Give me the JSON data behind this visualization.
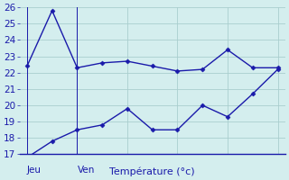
{
  "line1_x": [
    0,
    1,
    2,
    3,
    4,
    5,
    6,
    7,
    8,
    9,
    10
  ],
  "line1_y": [
    22.4,
    25.8,
    22.3,
    22.6,
    22.7,
    22.4,
    22.1,
    22.2,
    23.4,
    22.3,
    22.3
  ],
  "line2_x": [
    0,
    1,
    2,
    3,
    4,
    5,
    6,
    7,
    8,
    9,
    10
  ],
  "line2_y": [
    16.8,
    17.8,
    18.5,
    18.8,
    19.8,
    18.5,
    18.5,
    20.0,
    19.3,
    20.7,
    22.2
  ],
  "line_color": "#1a1aaa",
  "bg_color": "#d4eeee",
  "grid_color": "#aacece",
  "ylim": [
    17,
    26
  ],
  "yticks": [
    17,
    18,
    19,
    20,
    21,
    22,
    23,
    24,
    25,
    26
  ],
  "xlabel": "Température (°c)",
  "xlabel_fontsize": 8,
  "tick_label_fontsize": 7.5,
  "day_labels": [
    [
      "Jeu",
      0
    ],
    [
      "Ven",
      2
    ]
  ],
  "day_label_fontsize": 7.5,
  "vline_positions": [
    0,
    2
  ],
  "marker": "D",
  "markersize": 2.5,
  "linewidth": 1.0
}
